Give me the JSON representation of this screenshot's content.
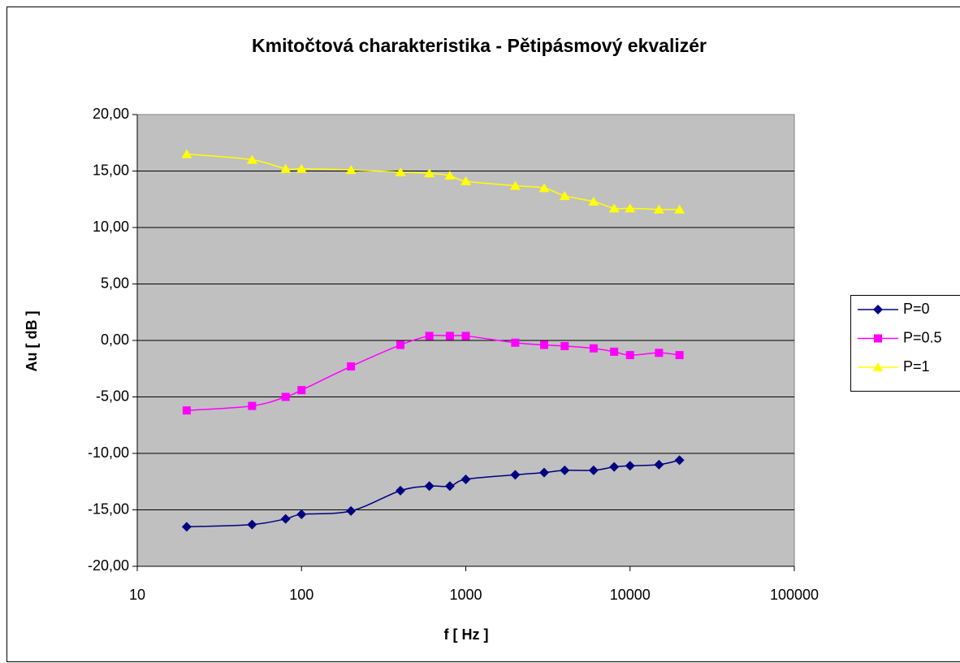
{
  "chart_data": {
    "type": "line",
    "title": "Kmitočtová charakteristika - Pětipásmový ekvalizér",
    "x_label": "f [ Hz ]",
    "y_label": "Au [ dB ]",
    "x": [
      20,
      50,
      80,
      100,
      200,
      400,
      600,
      800,
      1000,
      2000,
      3000,
      4000,
      6000,
      8000,
      10000,
      15000,
      20000
    ],
    "xscale": "log",
    "xlim": [
      10,
      100000
    ],
    "xticks": [
      10,
      100,
      1000,
      10000,
      100000
    ],
    "ylim": [
      -20,
      20
    ],
    "yticks": [
      {
        "value": -20,
        "label": "-20,00"
      },
      {
        "value": -15,
        "label": "-15,00"
      },
      {
        "value": -10,
        "label": "-10,00"
      },
      {
        "value": -5,
        "label": "-5,00"
      },
      {
        "value": 0,
        "label": "0,00"
      },
      {
        "value": 5,
        "label": "5,00"
      },
      {
        "value": 10,
        "label": "10,00"
      },
      {
        "value": 15,
        "label": "15,00"
      },
      {
        "value": 20,
        "label": "20,00"
      }
    ],
    "grid": true,
    "smooth": true,
    "legend": "right",
    "series": [
      {
        "name": "P=0",
        "color": "#000080",
        "marker": "diamond",
        "values": [
          -16.5,
          -16.3,
          -15.8,
          -15.4,
          -15.1,
          -13.3,
          -12.9,
          -12.9,
          -12.3,
          -11.9,
          -11.7,
          -11.5,
          -11.5,
          -11.2,
          -11.1,
          -11.0,
          -10.6
        ]
      },
      {
        "name": "P=0.5",
        "color": "#ff00ff",
        "marker": "square",
        "values": [
          -6.2,
          -5.8,
          -5.0,
          -4.4,
          -2.3,
          -0.4,
          0.4,
          0.4,
          0.4,
          -0.2,
          -0.4,
          -0.5,
          -0.7,
          -1.0,
          -1.3,
          -1.1,
          -1.3
        ]
      },
      {
        "name": "P=1",
        "color": "#ffff00",
        "marker": "triangle",
        "values": [
          16.5,
          16.0,
          15.2,
          15.2,
          15.1,
          14.9,
          14.8,
          14.6,
          14.1,
          13.7,
          13.5,
          12.8,
          12.3,
          11.7,
          11.7,
          11.6,
          11.6
        ]
      }
    ]
  }
}
